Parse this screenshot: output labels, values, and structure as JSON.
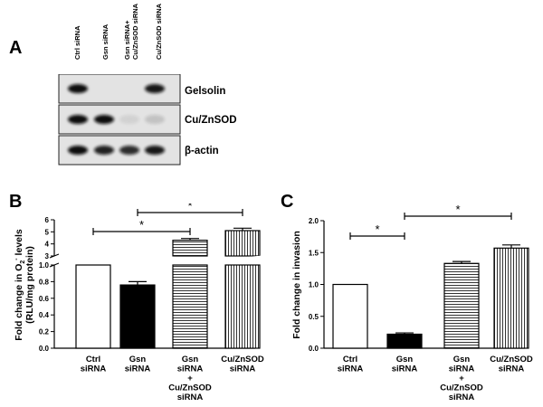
{
  "panel_a": {
    "label": "A",
    "lanes": [
      "Ctrl siRNA",
      "Gsn siRNA",
      "Gsn siRNA+",
      "Cu/ZnSOD siRNA",
      "Cu/ZnSOD siRNA"
    ],
    "blots": [
      {
        "name": "Gelsolin",
        "bands": [
          1.0,
          0.0,
          0.0,
          0.95
        ]
      },
      {
        "name": "Cu/ZnSOD",
        "bands": [
          1.0,
          1.0,
          0.08,
          0.15
        ]
      },
      {
        "name": "β-actin",
        "bands": [
          1.0,
          0.9,
          0.85,
          0.95
        ]
      }
    ]
  },
  "chart_data": [
    {
      "panel_label": "B",
      "type": "bar",
      "ylabel_line1": "Fold change in O",
      "ylabel_sub": "2",
      "ylabel_sup": "-",
      "ylabel_line1_end": " levels",
      "ylabel_line2": "(RLU/mg protein)",
      "categories": [
        [
          "Ctrl",
          "siRNA"
        ],
        [
          "Gsn",
          "siRNA"
        ],
        [
          "Gsn",
          "siRNA",
          "+",
          "Cu/ZnSOD",
          "siRNA"
        ],
        [
          "Cu/ZnSOD",
          "siRNA"
        ]
      ],
      "values": [
        1.0,
        0.76,
        4.3,
        5.1
      ],
      "errors": [
        0.0,
        0.04,
        0.15,
        0.2
      ],
      "fills": [
        "white",
        "black",
        "hlines",
        "vlines"
      ],
      "y_axis_break": {
        "lower": [
          0,
          1
        ],
        "upper": [
          3,
          6
        ]
      },
      "yticks_lower": [
        "0.0",
        "0.2",
        "0.4",
        "0.6",
        "0.8",
        "1.0"
      ],
      "yticks_upper": [
        "3",
        "4",
        "5",
        "6"
      ],
      "significance": [
        {
          "from": 0,
          "to": 2,
          "label": "*"
        },
        {
          "from": 1,
          "to": 3,
          "label": "*"
        }
      ]
    },
    {
      "panel_label": "C",
      "type": "bar",
      "ylabel": "Fold change in invasion",
      "categories": [
        [
          "Ctrl",
          "siRNA"
        ],
        [
          "Gsn",
          "siRNA"
        ],
        [
          "Gsn",
          "siRNA",
          "+",
          "Cu/ZnSOD",
          "siRNA"
        ],
        [
          "Cu/ZnSOD",
          "siRNA"
        ]
      ],
      "values": [
        1.0,
        0.22,
        1.33,
        1.57
      ],
      "errors": [
        0.0,
        0.02,
        0.03,
        0.05
      ],
      "fills": [
        "white",
        "black",
        "hlines",
        "vlines"
      ],
      "ylim": [
        0,
        2.0
      ],
      "yticks": [
        "0.0",
        "0.5",
        "1.0",
        "1.5",
        "2.0"
      ],
      "significance": [
        {
          "from": 0,
          "to": 1,
          "label": "*"
        },
        {
          "from": 1,
          "to": 3,
          "label": "*"
        }
      ]
    }
  ]
}
